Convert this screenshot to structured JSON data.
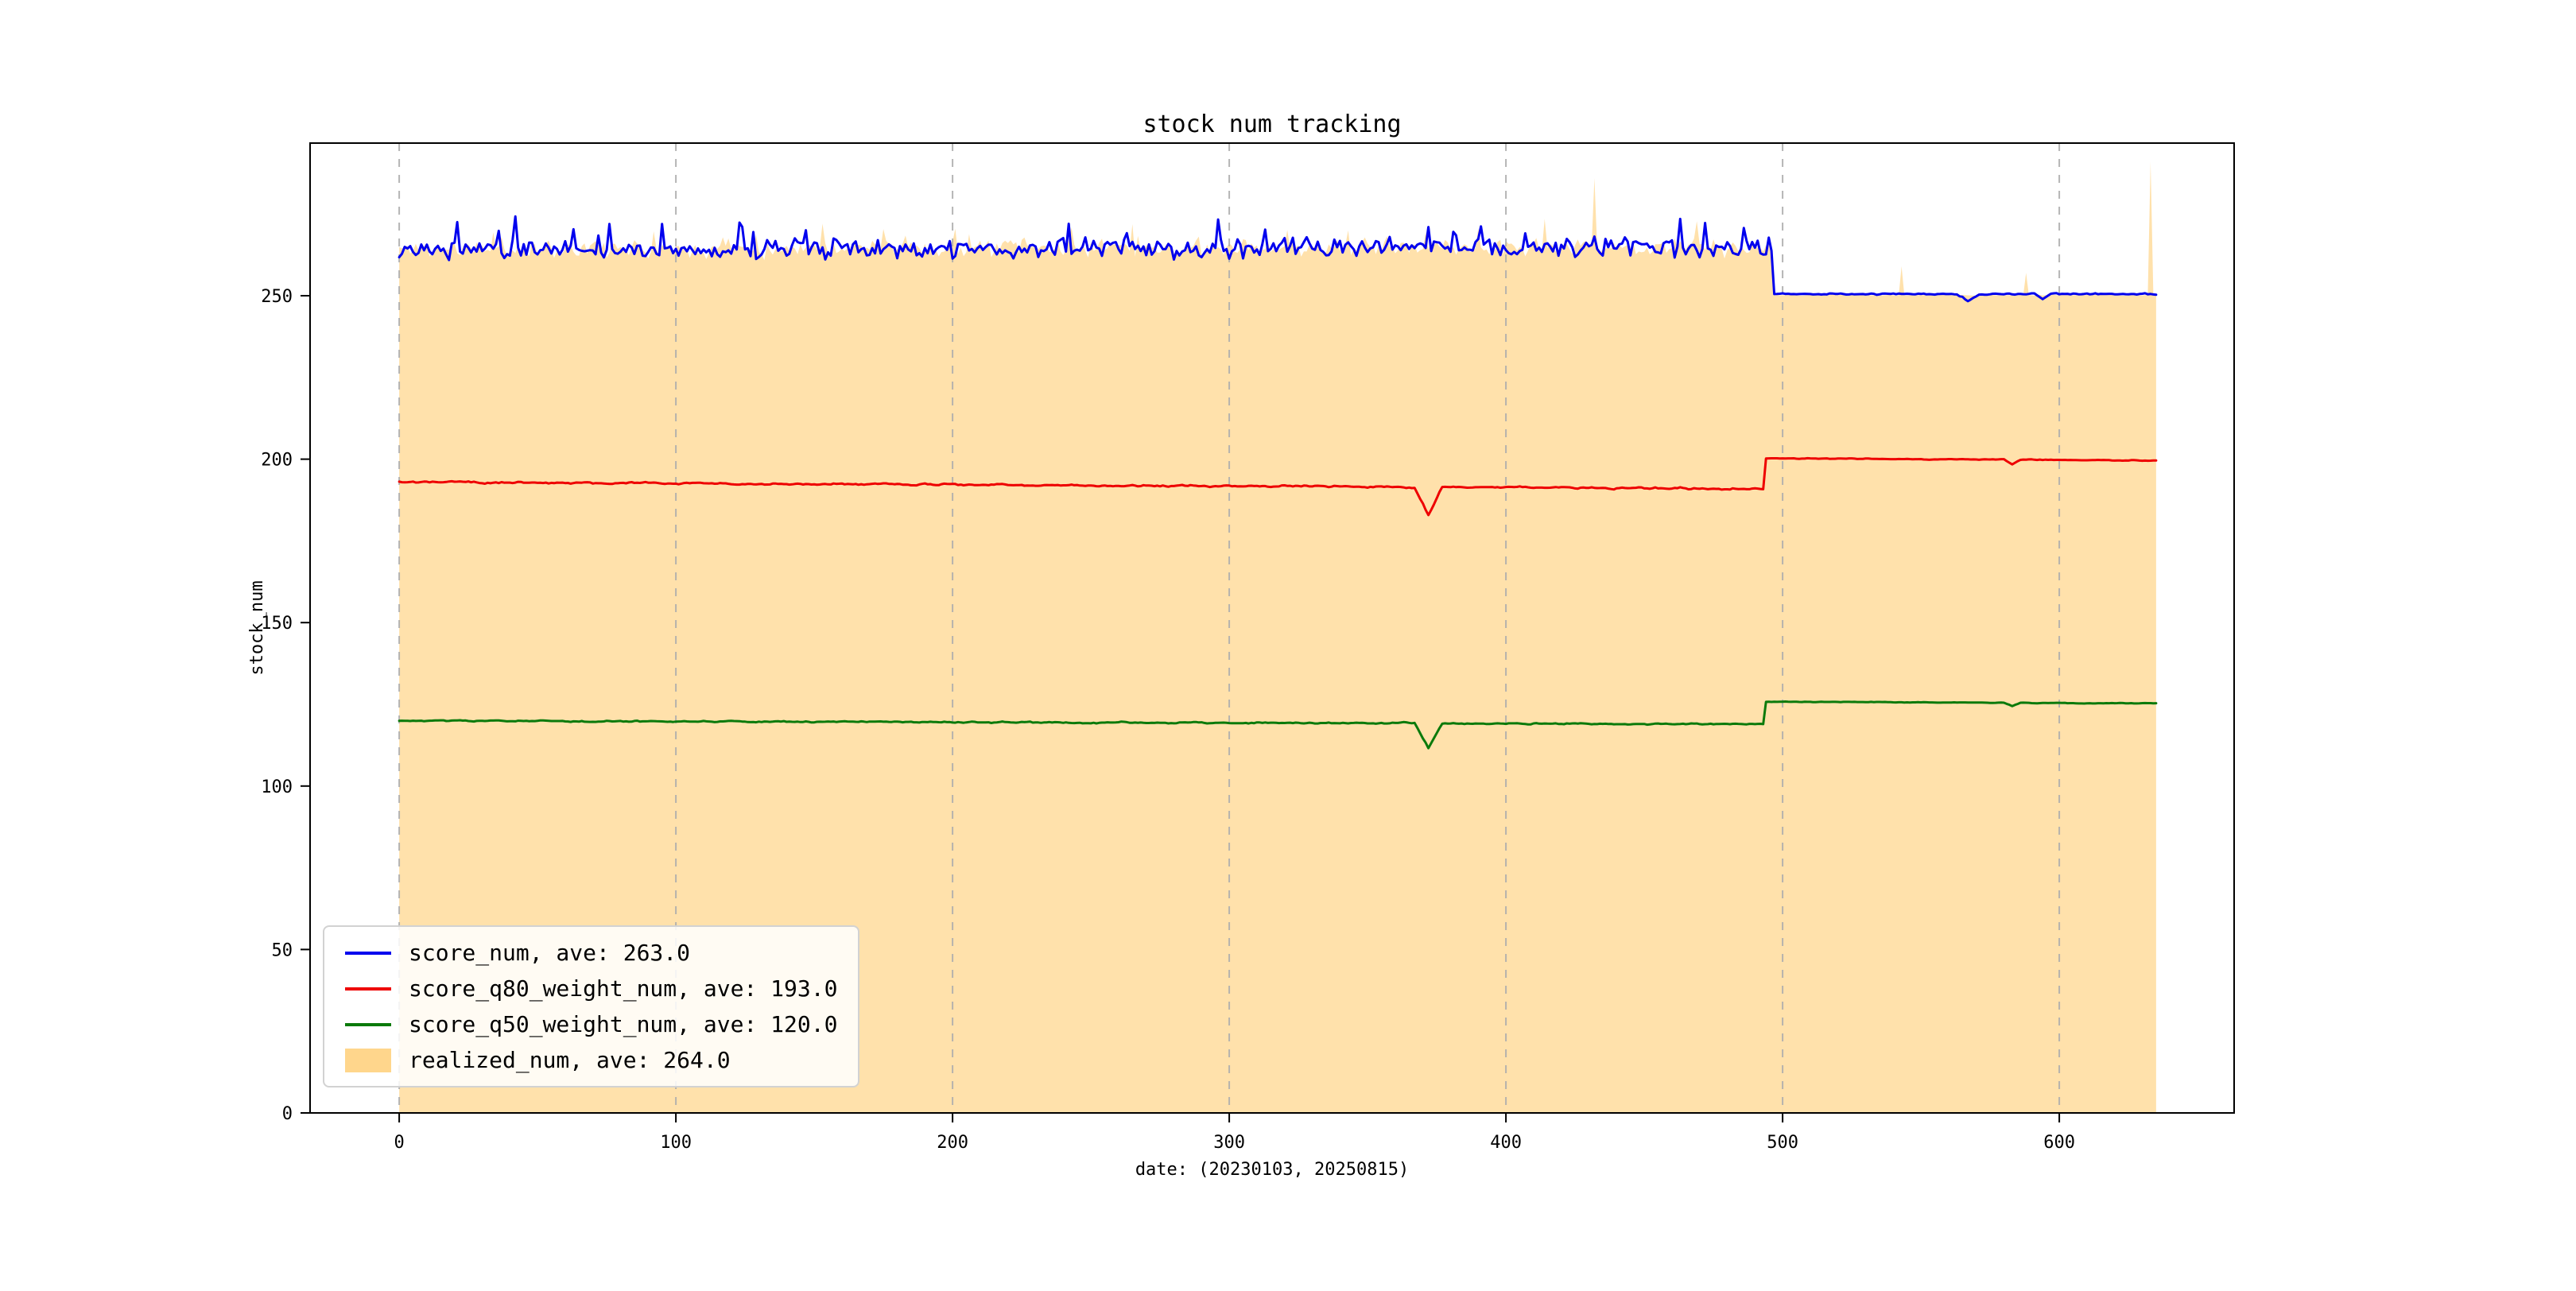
{
  "figure": {
    "background": "#ffffff",
    "frame_color": "#000000",
    "tick_color": "#000000"
  },
  "chart_data": {
    "type": "line",
    "title": "stock num tracking",
    "xlabel": "date: (20230103, 20250815)",
    "ylabel": "stock_num",
    "xlim": [
      -32.2,
      663.2
    ],
    "ylim": [
      0,
      296.7
    ],
    "xticks": [
      0,
      100,
      200,
      300,
      400,
      500,
      600
    ],
    "yticks": [
      0,
      50,
      100,
      150,
      200,
      250
    ],
    "grid": {
      "axis": "x",
      "style": "dashed",
      "color": "#adadad"
    },
    "x_points": {
      "start": 0,
      "end": 635,
      "step": 1
    },
    "seed": 11,
    "series": [
      {
        "name": "score_num",
        "legend": "score_num, ave: 263.0",
        "average": 263.0,
        "color": "#0000ee",
        "segments": [
          {
            "x0": 0,
            "x1": 496,
            "start": 264.0,
            "end": 265.0,
            "noise": 5.5,
            "smooth": 0.2,
            "spike_chance": 0.05,
            "spike_amp": 9
          },
          {
            "x0": 497,
            "x1": 635,
            "start": 250.5,
            "end": 250.5,
            "noise": 0.5,
            "smooth": 0.4
          }
        ],
        "dips": [
          {
            "x": 567,
            "depth": 2.0,
            "width": 4
          },
          {
            "x": 594,
            "depth": 1.5,
            "width": 3
          }
        ]
      },
      {
        "name": "score_q80_weight_num",
        "legend": "score_q80_weight_num, ave: 193.0",
        "average": 193.0,
        "color": "#ee0000",
        "segments": [
          {
            "x0": 0,
            "x1": 493,
            "start": 193.0,
            "end": 191.0,
            "noise": 0.9,
            "smooth": 0.6
          },
          {
            "x0": 494,
            "x1": 635,
            "start": 200.3,
            "end": 199.6,
            "noise": 0.35,
            "smooth": 0.6
          }
        ],
        "dips": [
          {
            "x": 372,
            "depth": 8.5,
            "width": 5
          },
          {
            "x": 583,
            "depth": 1.5,
            "width": 3
          }
        ]
      },
      {
        "name": "score_q50_weight_num",
        "legend": "score_q50_weight_num, ave: 120.0",
        "average": 120.0,
        "color": "#0b7a0b",
        "segments": [
          {
            "x0": 0,
            "x1": 493,
            "start": 120.0,
            "end": 118.9,
            "noise": 0.7,
            "smooth": 0.6
          },
          {
            "x0": 494,
            "x1": 635,
            "start": 125.8,
            "end": 125.3,
            "noise": 0.3,
            "smooth": 0.6
          }
        ],
        "dips": [
          {
            "x": 372,
            "depth": 7.5,
            "width": 5
          },
          {
            "x": 583,
            "depth": 1.0,
            "width": 3
          }
        ]
      }
    ],
    "area": {
      "name": "realized_num",
      "legend": "realized_num, ave: 264.0",
      "average": 264.0,
      "color": "#ffa500",
      "opacity": 0.33,
      "segments": [
        {
          "x0": 0,
          "x1": 496,
          "start": 264.5,
          "end": 265.0,
          "noise": 5.0,
          "smooth": 0.2,
          "spike_chance": 0.04,
          "spike_amp": 8
        },
        {
          "x0": 497,
          "x1": 635,
          "start": 250.2,
          "end": 250.2,
          "noise": 0.4,
          "smooth": 0.4
        }
      ],
      "spikes": [
        {
          "x": 432,
          "v": 286
        },
        {
          "x": 543,
          "v": 259
        },
        {
          "x": 588,
          "v": 257
        },
        {
          "x": 633,
          "v": 291
        }
      ]
    }
  }
}
